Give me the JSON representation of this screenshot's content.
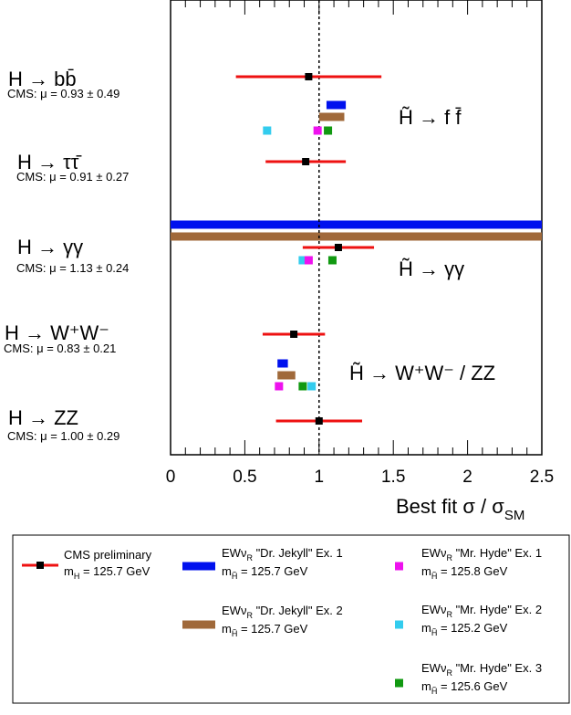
{
  "chart_data": {
    "type": "scatter",
    "xlabel": "Best fit σ / σ",
    "xlabel_sub": "SM",
    "xlim": [
      0,
      2.5
    ],
    "x_ticks": [
      "0",
      "0.5",
      "1",
      "1.5",
      "2",
      "2.5"
    ],
    "x_tick_values": [
      0,
      0.5,
      1,
      1.5,
      2,
      2.5
    ],
    "reference_line_x": 1,
    "channels": [
      {
        "label": "H → bb̄",
        "cms_text": "CMS: μ = 0.93 ± 0.49",
        "mu": 0.93,
        "low": 0.44,
        "high": 1.42
      },
      {
        "label": "H → ττ̄",
        "cms_text": "CMS: μ = 0.91 ± 0.27",
        "mu": 0.91,
        "low": 0.64,
        "high": 1.18
      },
      {
        "label": "H → γγ",
        "cms_text": "CMS: μ = 1.13 ± 0.24",
        "mu": 1.13,
        "low": 0.89,
        "high": 1.37
      },
      {
        "label": "H → W⁺W⁻",
        "cms_text": "CMS: μ = 0.83 ± 0.21",
        "mu": 0.83,
        "low": 0.62,
        "high": 1.04
      },
      {
        "label": "H → ZZ",
        "cms_text": "CMS: μ = 1.00 ± 0.29",
        "mu": 1.0,
        "low": 0.71,
        "high": 1.29
      }
    ],
    "group_labels": [
      "H̃ → f f̄",
      "H̃ → γγ",
      "H̃ → W⁺W⁻ / ZZ"
    ],
    "series_colors": {
      "cms": "#ee1111",
      "jekyll1": "#0011ee",
      "jekyll2": "#a0693a",
      "hyde1": "#ee11ee",
      "hyde2": "#33ccee",
      "hyde3": "#119911"
    },
    "model_points": [
      {
        "group": 0,
        "series": "jekyll1",
        "x1": 1.05,
        "x2": 1.18
      },
      {
        "group": 0,
        "series": "jekyll2",
        "x1": 1.0,
        "x2": 1.17
      },
      {
        "group": 0,
        "series": "hyde2",
        "x": 0.65
      },
      {
        "group": 0,
        "series": "hyde1",
        "x": 0.99
      },
      {
        "group": 0,
        "series": "hyde3",
        "x": 1.06
      },
      {
        "group": 2,
        "series": "jekyll1",
        "x1": 0.0,
        "x2": 2.5
      },
      {
        "group": 2,
        "series": "jekyll2",
        "x1": 0.0,
        "x2": 2.5
      },
      {
        "group": 2,
        "series": "hyde2",
        "x": 0.89
      },
      {
        "group": 2,
        "series": "hyde1",
        "x": 0.93
      },
      {
        "group": 2,
        "series": "hyde3",
        "x": 1.09
      },
      {
        "group": 3,
        "series": "jekyll1",
        "x1": 0.72,
        "x2": 0.79
      },
      {
        "group": 3,
        "series": "jekyll2",
        "x1": 0.72,
        "x2": 0.84
      },
      {
        "group": 3,
        "series": "hyde1",
        "x": 0.73
      },
      {
        "group": 3,
        "series": "hyde3",
        "x": 0.89
      },
      {
        "group": 3,
        "series": "hyde2",
        "x": 0.95
      }
    ],
    "legend": [
      {
        "series": "cms",
        "marker": "errorbar",
        "name": "CMS preliminary",
        "mass_prefix": "m",
        "mass_sub": "H",
        "mass_value": " = 125.7 GeV"
      },
      {
        "series": "jekyll1",
        "marker": "band",
        "name_pre": "EWν",
        "name_sub": "R",
        "name_post": " \"Dr. Jekyll\" Ex. 1",
        "mass_prefix": "m",
        "mass_sub": "H̃",
        "mass_value": " = 125.7 GeV"
      },
      {
        "series": "jekyll2",
        "marker": "band",
        "name_pre": "EWν",
        "name_sub": "R",
        "name_post": " \"Dr. Jekyll\" Ex. 2",
        "mass_prefix": "m",
        "mass_sub": "H̃",
        "mass_value": " = 125.7 GeV"
      },
      {
        "series": "hyde1",
        "marker": "square",
        "name_pre": "EWν",
        "name_sub": "R",
        "name_post": " \"Mr. Hyde\" Ex. 1",
        "mass_prefix": "m",
        "mass_sub": "H̃",
        "mass_value": " = 125.8 GeV"
      },
      {
        "series": "hyde2",
        "marker": "square",
        "name_pre": "EWν",
        "name_sub": "R",
        "name_post": " \"Mr. Hyde\" Ex. 2",
        "mass_prefix": "m",
        "mass_sub": "H̃",
        "mass_value": " = 125.2 GeV"
      },
      {
        "series": "hyde3",
        "marker": "square",
        "name_pre": "EWν",
        "name_sub": "R",
        "name_post": " \"Mr. Hyde\" Ex. 3",
        "mass_prefix": "m",
        "mass_sub": "H̃",
        "mass_value": " = 125.6 GeV"
      }
    ]
  }
}
